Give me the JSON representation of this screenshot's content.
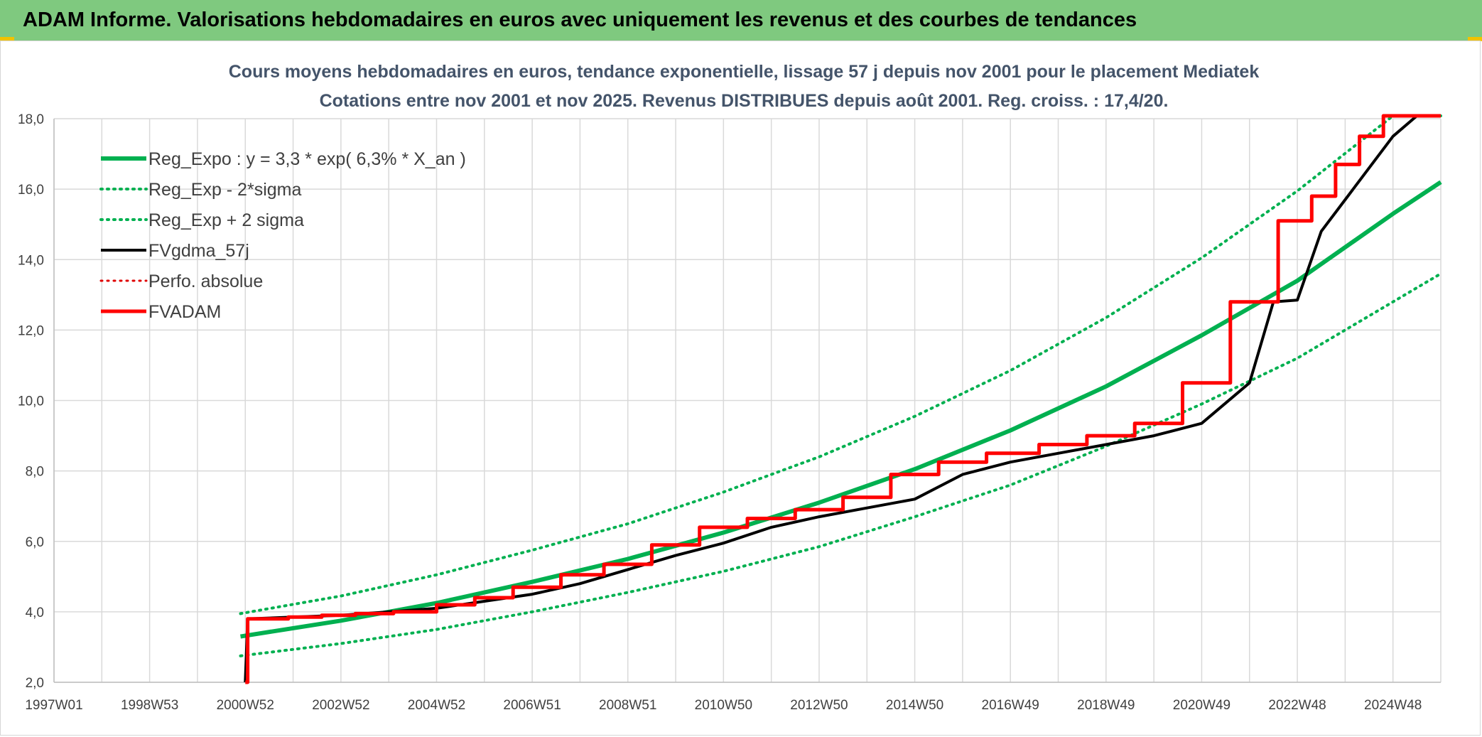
{
  "header": {
    "title": "ADAM Informe. Valorisations hebdomadaires en euros avec uniquement les revenus et des courbes de tendances"
  },
  "colors": {
    "header_bg": "#7fc97f",
    "green": "#00b050",
    "black": "#000000",
    "red": "#ff0000",
    "grid": "#d9d9d9"
  },
  "chart_data": {
    "type": "line",
    "title_lines": [
      "Cours moyens hebdomadaires en euros, tendance exponentielle, lissage 57 j depuis nov 2001 pour le placement Mediatek",
      "Cotations entre nov 2001 et nov 2025. Revenus DISTRIBUES depuis août 2001. Reg. croiss. : 17,4/20."
    ],
    "x_ticks": [
      "1997W01",
      "1998W53",
      "2000W52",
      "2002W52",
      "2004W52",
      "2006W51",
      "2008W51",
      "2010W50",
      "2012W50",
      "2014W50",
      "2016W49",
      "2018W49",
      "2020W49",
      "2022W48",
      "2024W48"
    ],
    "x_range": [
      1997.0,
      2026.0
    ],
    "y_range": [
      2.0,
      18.0
    ],
    "y_ticks": [
      "2,0",
      "4,0",
      "6,0",
      "8,0",
      "10,0",
      "12,0",
      "14,0",
      "16,0",
      "18,0"
    ],
    "legend": [
      {
        "label": "Reg_Expo : y = 3,3 * exp( 6,3% *  X_an )",
        "color": "#00b050",
        "style": "solid",
        "width": 6
      },
      {
        "label": "Reg_Exp - 2*sigma",
        "color": "#00b050",
        "style": "dotted",
        "width": 4
      },
      {
        "label": "Reg_Exp + 2 sigma",
        "color": "#00b050",
        "style": "dotted",
        "width": 4
      },
      {
        "label": "FVgdma_57j",
        "color": "#000000",
        "style": "solid",
        "width": 4
      },
      {
        "label": "Perfo. absolue",
        "color": "#e00000",
        "style": "dotted",
        "width": 3
      },
      {
        "label": "FVADAM",
        "color": "#ff0000",
        "style": "solid",
        "width": 5
      }
    ],
    "series": [
      {
        "name": "Reg_Expo : y = 3,3 * exp( 6,3% *  X_an )",
        "x": [
          2000.9,
          2003,
          2005,
          2007,
          2009,
          2011,
          2013,
          2015,
          2017,
          2019,
          2021,
          2023,
          2025,
          2026
        ],
        "y": [
          3.3,
          3.75,
          4.25,
          4.85,
          5.5,
          6.25,
          7.1,
          8.05,
          9.15,
          10.4,
          11.85,
          13.4,
          15.3,
          16.2
        ]
      },
      {
        "name": "Reg_Exp - 2*sigma",
        "x": [
          2000.9,
          2003,
          2005,
          2007,
          2009,
          2011,
          2013,
          2015,
          2017,
          2019,
          2021,
          2023,
          2025,
          2026
        ],
        "y": [
          2.75,
          3.1,
          3.5,
          4.0,
          4.55,
          5.15,
          5.85,
          6.7,
          7.6,
          8.7,
          9.9,
          11.2,
          12.8,
          13.6
        ]
      },
      {
        "name": "Reg_Exp + 2 sigma",
        "x": [
          2000.9,
          2003,
          2005,
          2007,
          2009,
          2011,
          2013,
          2015,
          2017,
          2019,
          2021,
          2023,
          2025,
          2026
        ],
        "y": [
          3.95,
          4.45,
          5.05,
          5.75,
          6.5,
          7.4,
          8.4,
          9.55,
          10.85,
          12.35,
          14.05,
          15.95,
          18.2,
          19.3
        ]
      },
      {
        "name": "FVgdma_57j",
        "x": [
          2001.0,
          2001.05,
          2002.0,
          2003.0,
          2004.0,
          2005.0,
          2006.0,
          2007.0,
          2008.0,
          2009.0,
          2010.0,
          2011.0,
          2012.0,
          2013.0,
          2014.0,
          2015.0,
          2016.0,
          2017.0,
          2018.0,
          2019.0,
          2020.0,
          2021.0,
          2022.0,
          2022.5,
          2023.0,
          2023.5,
          2024.0,
          2024.5,
          2025.0,
          2025.5,
          2026.0
        ],
        "y": [
          2.0,
          3.8,
          3.85,
          3.9,
          4.0,
          4.1,
          4.3,
          4.5,
          4.8,
          5.2,
          5.6,
          5.95,
          6.4,
          6.7,
          6.95,
          7.2,
          7.9,
          8.25,
          8.5,
          8.75,
          9.0,
          9.35,
          10.5,
          12.8,
          12.85,
          14.8,
          15.7,
          16.6,
          17.5,
          18.2,
          18.3
        ]
      },
      {
        "name": "FVADAM",
        "x": [
          2001.0,
          2001.05,
          2001.9,
          2002.6,
          2003.3,
          2004.1,
          2005.0,
          2005.8,
          2006.6,
          2007.6,
          2008.5,
          2009.5,
          2010.5,
          2011.5,
          2012.5,
          2013.5,
          2014.5,
          2015.5,
          2016.5,
          2017.6,
          2018.6,
          2019.6,
          2020.6,
          2021.6,
          2022.6,
          2023.3,
          2023.8,
          2024.3,
          2024.8,
          2025.3,
          2026.0
        ],
        "y": [
          2.0,
          3.8,
          3.85,
          3.9,
          3.95,
          4.0,
          4.2,
          4.4,
          4.7,
          5.05,
          5.35,
          5.9,
          6.4,
          6.65,
          6.9,
          7.25,
          7.9,
          8.25,
          8.5,
          8.75,
          9.0,
          9.35,
          10.5,
          12.8,
          15.1,
          15.8,
          16.7,
          17.5,
          18.2,
          18.25,
          18.25
        ]
      }
    ]
  }
}
